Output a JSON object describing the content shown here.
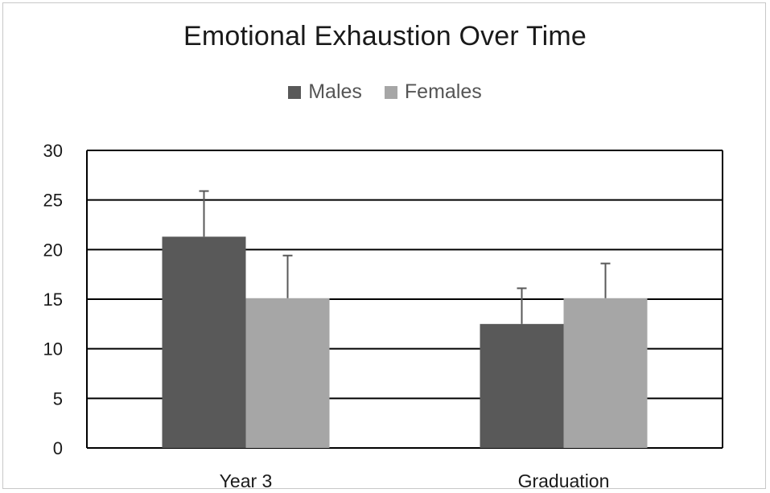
{
  "chart_data": {
    "type": "bar",
    "title": "Emotional Exhaustion Over Time",
    "categories": [
      "Year 3",
      "Graduation"
    ],
    "series": [
      {
        "name": "Males",
        "color": "#595959",
        "values": [
          21.3,
          12.5
        ],
        "error": [
          4.6,
          3.6
        ]
      },
      {
        "name": "Females",
        "color": "#a6a6a6",
        "values": [
          15.1,
          15.1
        ],
        "error": [
          4.3,
          3.5
        ]
      }
    ],
    "ylim": [
      0,
      30
    ],
    "yticks": [
      0,
      5,
      10,
      15,
      20,
      25,
      30
    ],
    "grid": true,
    "legend_position": "top-center"
  }
}
